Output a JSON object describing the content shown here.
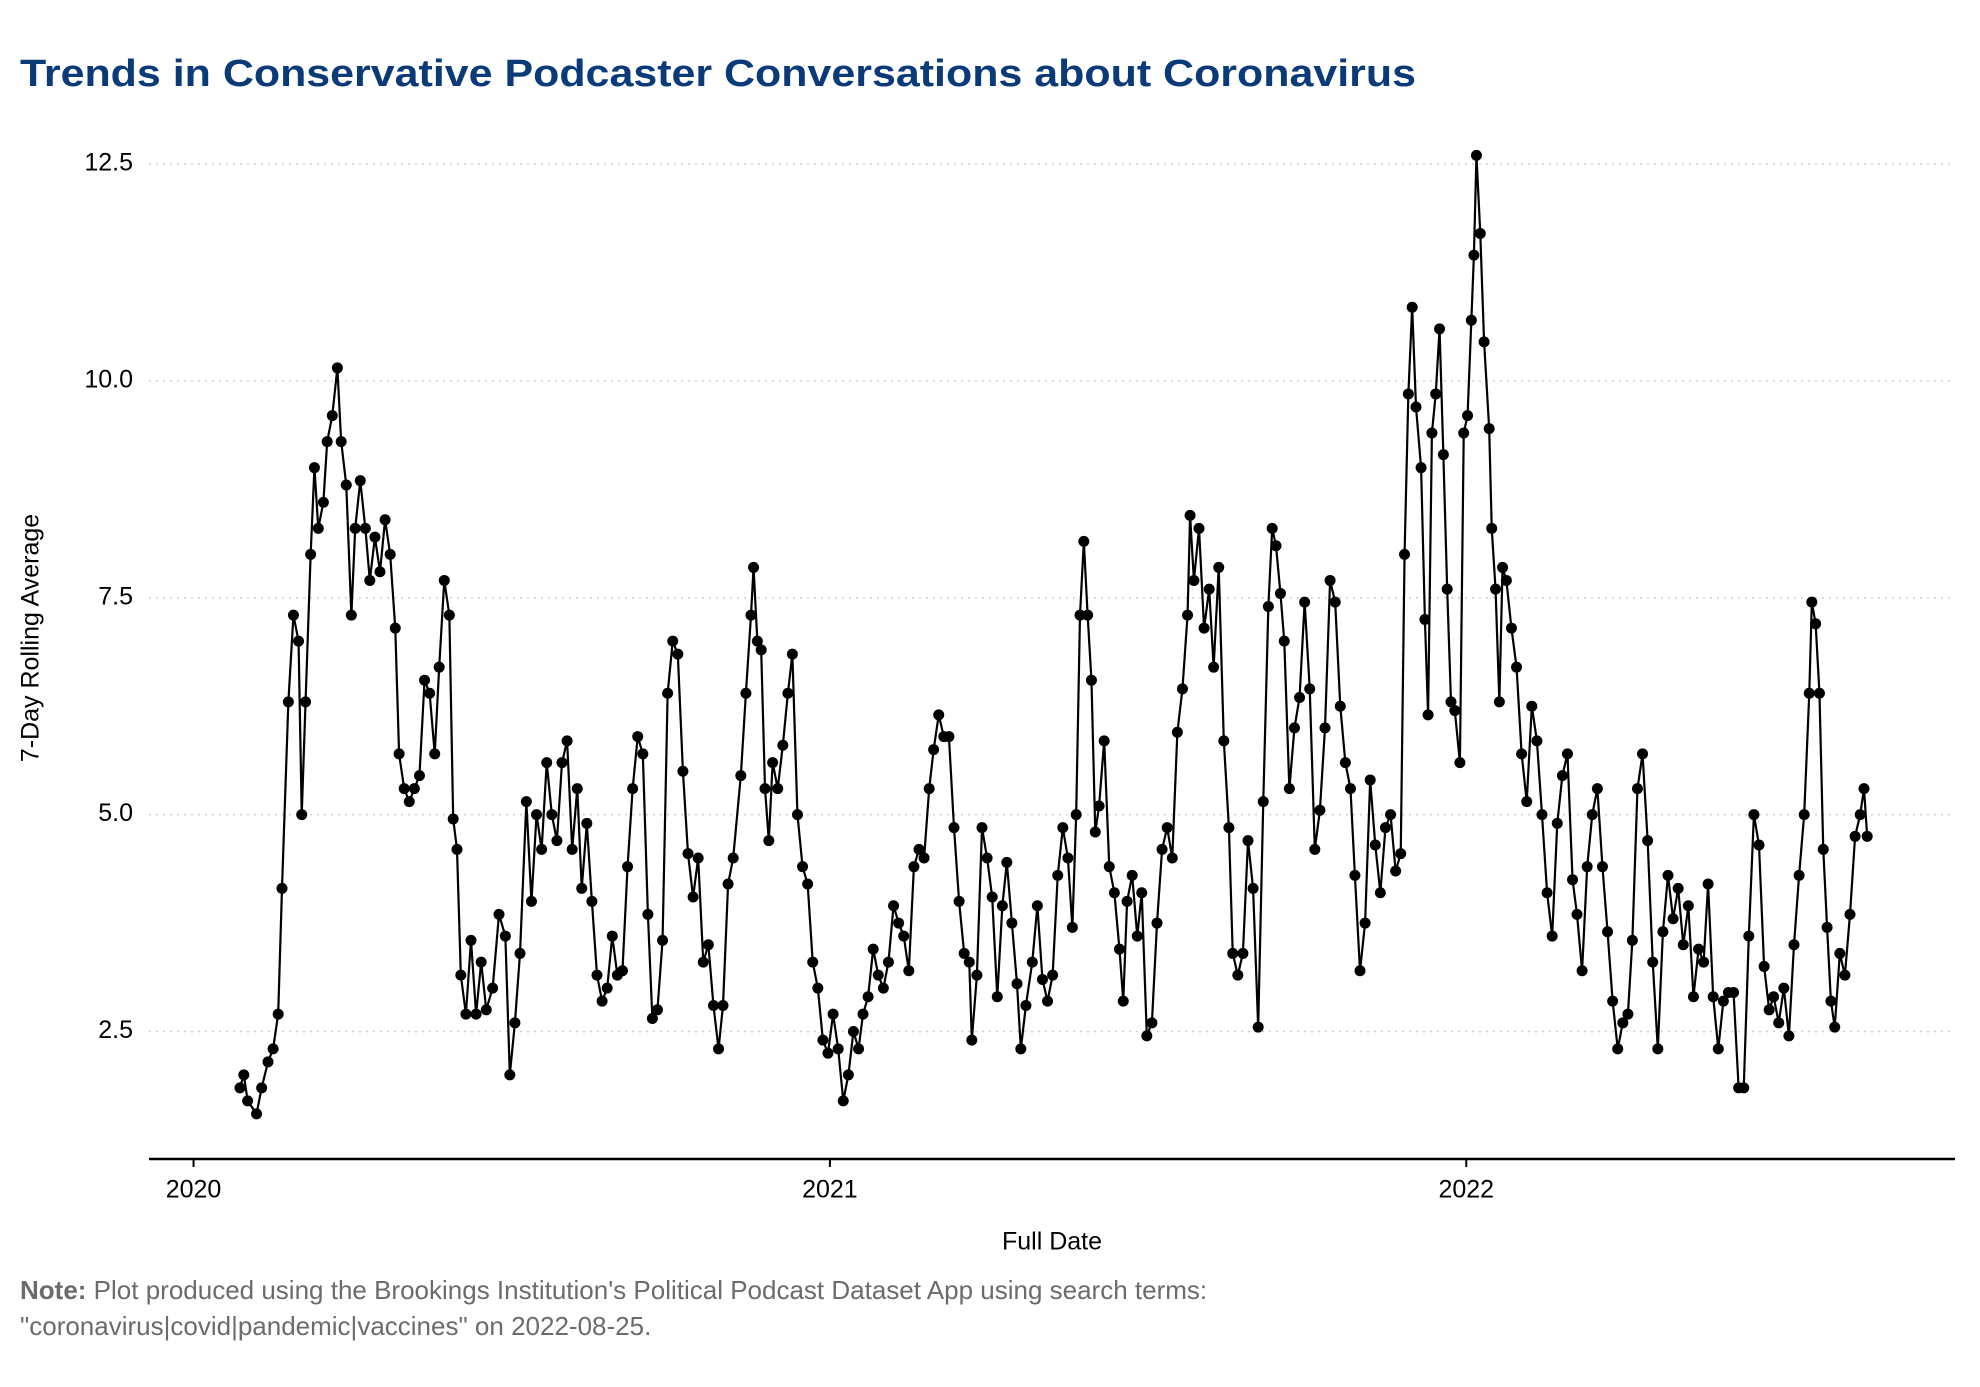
{
  "chart_data": {
    "type": "line",
    "title": "Trends in Conservative Podcaster Conversations about Coronavirus",
    "x_label": "Full Date",
    "y_label": "7-Day Rolling Average",
    "note": {
      "label": "Note:",
      "lines": [
        "Plot produced using the Brookings Institution's Political Podcast Dataset App using search terms:",
        "\"coronavirus|covid|pandemic|vaccines\"  on 2022-08-25."
      ]
    },
    "xlim": [
      2019.93,
      2022.768
    ],
    "xticks": [
      2020,
      2021,
      2022
    ],
    "ylim": [
      1.03,
      12.72
    ],
    "yticks": [
      2.5,
      {
        "value": 5,
        "label": "5.0"
      },
      7.5,
      {
        "value": 10,
        "label": "10.0"
      },
      12.5
    ],
    "grid": true,
    "x": [
      2020.073,
      2020.079,
      2020.085,
      2020.099,
      2020.107,
      2020.117,
      2020.125,
      2020.133,
      2020.139,
      2020.149,
      2020.157,
      2020.165,
      2020.17,
      2020.176,
      2020.184,
      2020.19,
      2020.196,
      2020.204,
      2020.21,
      2020.218,
      2020.226,
      2020.232,
      2020.24,
      2020.248,
      2020.254,
      2020.262,
      2020.27,
      2020.277,
      2020.285,
      2020.293,
      2020.301,
      2020.309,
      2020.317,
      2020.323,
      2020.331,
      2020.339,
      2020.347,
      2020.355,
      2020.363,
      2020.371,
      2020.379,
      2020.386,
      2020.394,
      2020.402,
      2020.408,
      2020.414,
      2020.42,
      2020.428,
      2020.436,
      2020.444,
      2020.452,
      2020.46,
      2020.47,
      2020.48,
      2020.49,
      2020.497,
      2020.505,
      2020.513,
      2020.523,
      2020.531,
      2020.539,
      2020.547,
      2020.555,
      2020.563,
      2020.571,
      2020.579,
      2020.587,
      2020.595,
      2020.603,
      2020.61,
      2020.618,
      2020.626,
      2020.634,
      2020.642,
      2020.65,
      2020.658,
      2020.666,
      2020.674,
      2020.682,
      2020.69,
      2020.698,
      2020.706,
      2020.714,
      2020.721,
      2020.729,
      2020.737,
      2020.745,
      2020.753,
      2020.761,
      2020.769,
      2020.777,
      2020.785,
      2020.793,
      2020.801,
      2020.809,
      2020.817,
      2020.825,
      2020.832,
      2020.84,
      2020.848,
      2020.86,
      2020.868,
      2020.876,
      2020.88,
      2020.886,
      2020.892,
      2020.898,
      2020.904,
      2020.91,
      2020.918,
      2020.926,
      2020.934,
      2020.941,
      2020.949,
      2020.957,
      2020.965,
      2020.973,
      2020.981,
      2020.989,
      2020.997,
      2021.005,
      2021.013,
      2021.021,
      2021.029,
      2021.037,
      2021.045,
      2021.052,
      2021.06,
      2021.068,
      2021.076,
      2021.084,
      2021.092,
      2021.1,
      2021.108,
      2021.116,
      2021.124,
      2021.132,
      2021.14,
      2021.148,
      2021.156,
      2021.163,
      2021.171,
      2021.179,
      2021.187,
      2021.195,
      2021.203,
      2021.211,
      2021.219,
      2021.223,
      2021.231,
      2021.239,
      2021.247,
      2021.255,
      2021.263,
      2021.271,
      2021.278,
      2021.286,
      2021.294,
      2021.3,
      2021.308,
      2021.318,
      2021.326,
      2021.334,
      2021.342,
      2021.35,
      2021.358,
      2021.366,
      2021.374,
      2021.381,
      2021.387,
      2021.393,
      2021.399,
      2021.405,
      2021.411,
      2021.417,
      2021.423,
      2021.431,
      2021.439,
      2021.447,
      2021.455,
      2021.461,
      2021.467,
      2021.475,
      2021.483,
      2021.49,
      2021.498,
      2021.506,
      2021.514,
      2021.522,
      2021.53,
      2021.538,
      2021.546,
      2021.554,
      2021.562,
      2021.566,
      2021.572,
      2021.58,
      2021.588,
      2021.596,
      2021.603,
      2021.611,
      2021.619,
      2021.627,
      2021.633,
      2021.641,
      2021.649,
      2021.657,
      2021.665,
      2021.673,
      2021.681,
      2021.689,
      2021.695,
      2021.701,
      2021.708,
      2021.714,
      2021.722,
      2021.73,
      2021.738,
      2021.746,
      2021.754,
      2021.762,
      2021.77,
      2021.778,
      2021.786,
      2021.794,
      2021.802,
      2021.81,
      2021.818,
      2021.825,
      2021.833,
      2021.841,
      2021.849,
      2021.857,
      2021.865,
      2021.873,
      2021.881,
      2021.889,
      2021.897,
      2021.903,
      2021.909,
      2021.915,
      2021.921,
      2021.929,
      2021.935,
      2021.94,
      2021.946,
      2021.952,
      2021.958,
      2021.964,
      2021.97,
      2021.976,
      2021.982,
      2021.99,
      2021.996,
      2022.002,
      2022.008,
      2022.012,
      2022.016,
      2022.022,
      2022.028,
      2022.036,
      2022.04,
      2022.046,
      2022.052,
      2022.057,
      2022.063,
      2022.071,
      2022.079,
      2022.087,
      2022.095,
      2022.103,
      2022.111,
      2022.119,
      2022.127,
      2022.135,
      2022.143,
      2022.151,
      2022.159,
      2022.167,
      2022.174,
      2022.182,
      2022.19,
      2022.198,
      2022.206,
      2022.214,
      2022.222,
      2022.23,
      2022.238,
      2022.246,
      2022.254,
      2022.261,
      2022.269,
      2022.277,
      2022.285,
      2022.293,
      2022.301,
      2022.309,
      2022.317,
      2022.325,
      2022.333,
      2022.341,
      2022.349,
      2022.357,
      2022.365,
      2022.373,
      2022.38,
      2022.388,
      2022.396,
      2022.404,
      2022.412,
      2022.42,
      2022.428,
      2022.436,
      2022.444,
      2022.452,
      2022.46,
      2022.468,
      2022.476,
      2022.483,
      2022.491,
      2022.499,
      2022.507,
      2022.515,
      2022.523,
      2022.531,
      2022.539,
      2022.543,
      2022.549,
      2022.555,
      2022.561,
      2022.567,
      2022.573,
      2022.579,
      2022.587,
      2022.595,
      2022.603,
      2022.611,
      2022.619,
      2022.625,
      2022.63
    ],
    "series": [
      {
        "color": "#000000",
        "values": [
          1.85,
          2.0,
          1.7,
          1.55,
          1.85,
          2.15,
          2.3,
          2.7,
          4.15,
          6.3,
          7.3,
          7.0,
          5.0,
          6.3,
          8.0,
          9.0,
          8.3,
          8.6,
          9.3,
          9.6,
          10.15,
          9.3,
          8.8,
          7.3,
          8.3,
          8.85,
          8.3,
          7.7,
          8.2,
          7.8,
          8.4,
          8.0,
          7.15,
          5.7,
          5.3,
          5.15,
          5.3,
          5.45,
          6.55,
          6.4,
          5.7,
          6.7,
          7.7,
          7.3,
          4.95,
          4.6,
          3.15,
          2.7,
          3.55,
          2.7,
          3.3,
          2.75,
          3.0,
          3.85,
          3.6,
          2.0,
          2.6,
          3.4,
          5.15,
          4.0,
          5.0,
          4.6,
          5.6,
          5.0,
          4.7,
          5.6,
          5.85,
          4.6,
          5.3,
          4.15,
          4.9,
          4.0,
          3.15,
          2.85,
          3.0,
          3.6,
          3.15,
          3.2,
          4.4,
          5.3,
          5.9,
          5.7,
          3.85,
          2.65,
          2.75,
          3.55,
          6.4,
          7.0,
          6.85,
          5.5,
          4.55,
          4.05,
          4.5,
          3.3,
          3.5,
          2.8,
          2.3,
          2.8,
          4.2,
          4.5,
          5.45,
          6.4,
          7.3,
          7.85,
          7.0,
          6.9,
          5.3,
          4.7,
          5.6,
          5.3,
          5.8,
          6.4,
          6.85,
          5.0,
          4.4,
          4.2,
          3.3,
          3.0,
          2.4,
          2.25,
          2.7,
          2.3,
          1.7,
          2.0,
          2.5,
          2.3,
          2.7,
          2.9,
          3.45,
          3.15,
          3.0,
          3.3,
          3.95,
          3.75,
          3.6,
          3.2,
          4.4,
          4.6,
          4.5,
          5.3,
          5.75,
          6.15,
          5.9,
          5.9,
          4.85,
          4.0,
          3.4,
          3.3,
          2.4,
          3.15,
          4.85,
          4.5,
          4.05,
          2.9,
          3.95,
          4.45,
          3.75,
          3.05,
          2.3,
          2.8,
          3.3,
          3.95,
          3.1,
          2.85,
          3.15,
          4.3,
          4.85,
          4.5,
          3.7,
          5.0,
          7.3,
          8.15,
          7.3,
          6.55,
          4.8,
          5.1,
          5.85,
          4.4,
          4.1,
          3.45,
          2.85,
          4.0,
          4.3,
          3.6,
          4.1,
          2.45,
          2.6,
          3.75,
          4.6,
          4.85,
          4.5,
          5.95,
          6.45,
          7.3,
          8.45,
          7.7,
          8.3,
          7.15,
          7.6,
          6.7,
          7.85,
          5.85,
          4.85,
          3.4,
          3.15,
          3.4,
          4.7,
          4.15,
          2.55,
          5.15,
          7.4,
          8.3,
          8.1,
          7.55,
          7.0,
          5.3,
          6.0,
          6.35,
          7.45,
          6.45,
          4.6,
          5.05,
          6.0,
          7.7,
          7.45,
          6.25,
          5.6,
          5.3,
          4.3,
          3.2,
          3.75,
          5.4,
          4.65,
          4.1,
          4.85,
          5.0,
          4.35,
          4.55,
          8.0,
          9.85,
          10.85,
          9.7,
          9.0,
          7.25,
          6.15,
          9.4,
          9.85,
          10.6,
          9.15,
          7.6,
          6.3,
          6.2,
          5.6,
          9.4,
          9.6,
          10.7,
          11.45,
          12.6,
          11.7,
          10.45,
          9.45,
          8.3,
          7.6,
          6.3,
          7.85,
          7.7,
          7.15,
          6.7,
          5.7,
          5.15,
          6.25,
          5.85,
          5.0,
          4.1,
          3.6,
          4.9,
          5.45,
          5.7,
          4.25,
          3.85,
          3.2,
          4.4,
          5.0,
          5.3,
          4.4,
          3.65,
          2.85,
          2.3,
          2.6,
          2.7,
          3.55,
          5.3,
          5.7,
          4.7,
          3.3,
          2.3,
          3.65,
          4.3,
          3.8,
          4.15,
          3.5,
          3.95,
          2.9,
          3.45,
          3.3,
          4.2,
          2.9,
          2.3,
          2.85,
          2.95,
          2.95,
          1.85,
          1.85,
          3.6,
          5.0,
          4.65,
          3.25,
          2.75,
          2.9,
          2.6,
          3.0,
          2.45,
          3.5,
          4.3,
          5.0,
          6.4,
          7.45,
          7.2,
          6.4,
          4.6,
          3.7,
          2.85,
          2.55,
          3.4,
          3.15,
          3.85,
          4.75,
          5.0,
          5.3,
          4.75
        ]
      }
    ]
  }
}
